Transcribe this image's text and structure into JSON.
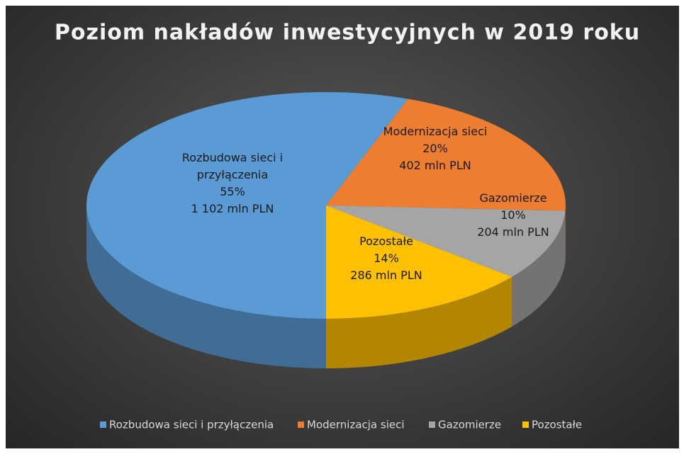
{
  "chart_data": {
    "type": "pie3d",
    "title": "Poziom nakładów inwestycyjnych w 2019 roku",
    "categories": [
      "Rozbudowa sieci i przyłączenia",
      "Modernizacja sieci",
      "Gazomierze",
      "Pozostałe"
    ],
    "values": [
      55,
      20,
      10,
      14
    ],
    "value_labels": [
      "55%",
      "20%",
      "10%",
      "14%"
    ],
    "amounts": [
      1102,
      402,
      204,
      286
    ],
    "amount_labels": [
      "1 102 mln PLN",
      "402 mln PLN",
      "204 mln PLN",
      "286 mln PLN"
    ],
    "colors": [
      "#5b9bd5",
      "#ed7d31",
      "#a5a5a5",
      "#ffc000"
    ],
    "legend": "bottom"
  }
}
